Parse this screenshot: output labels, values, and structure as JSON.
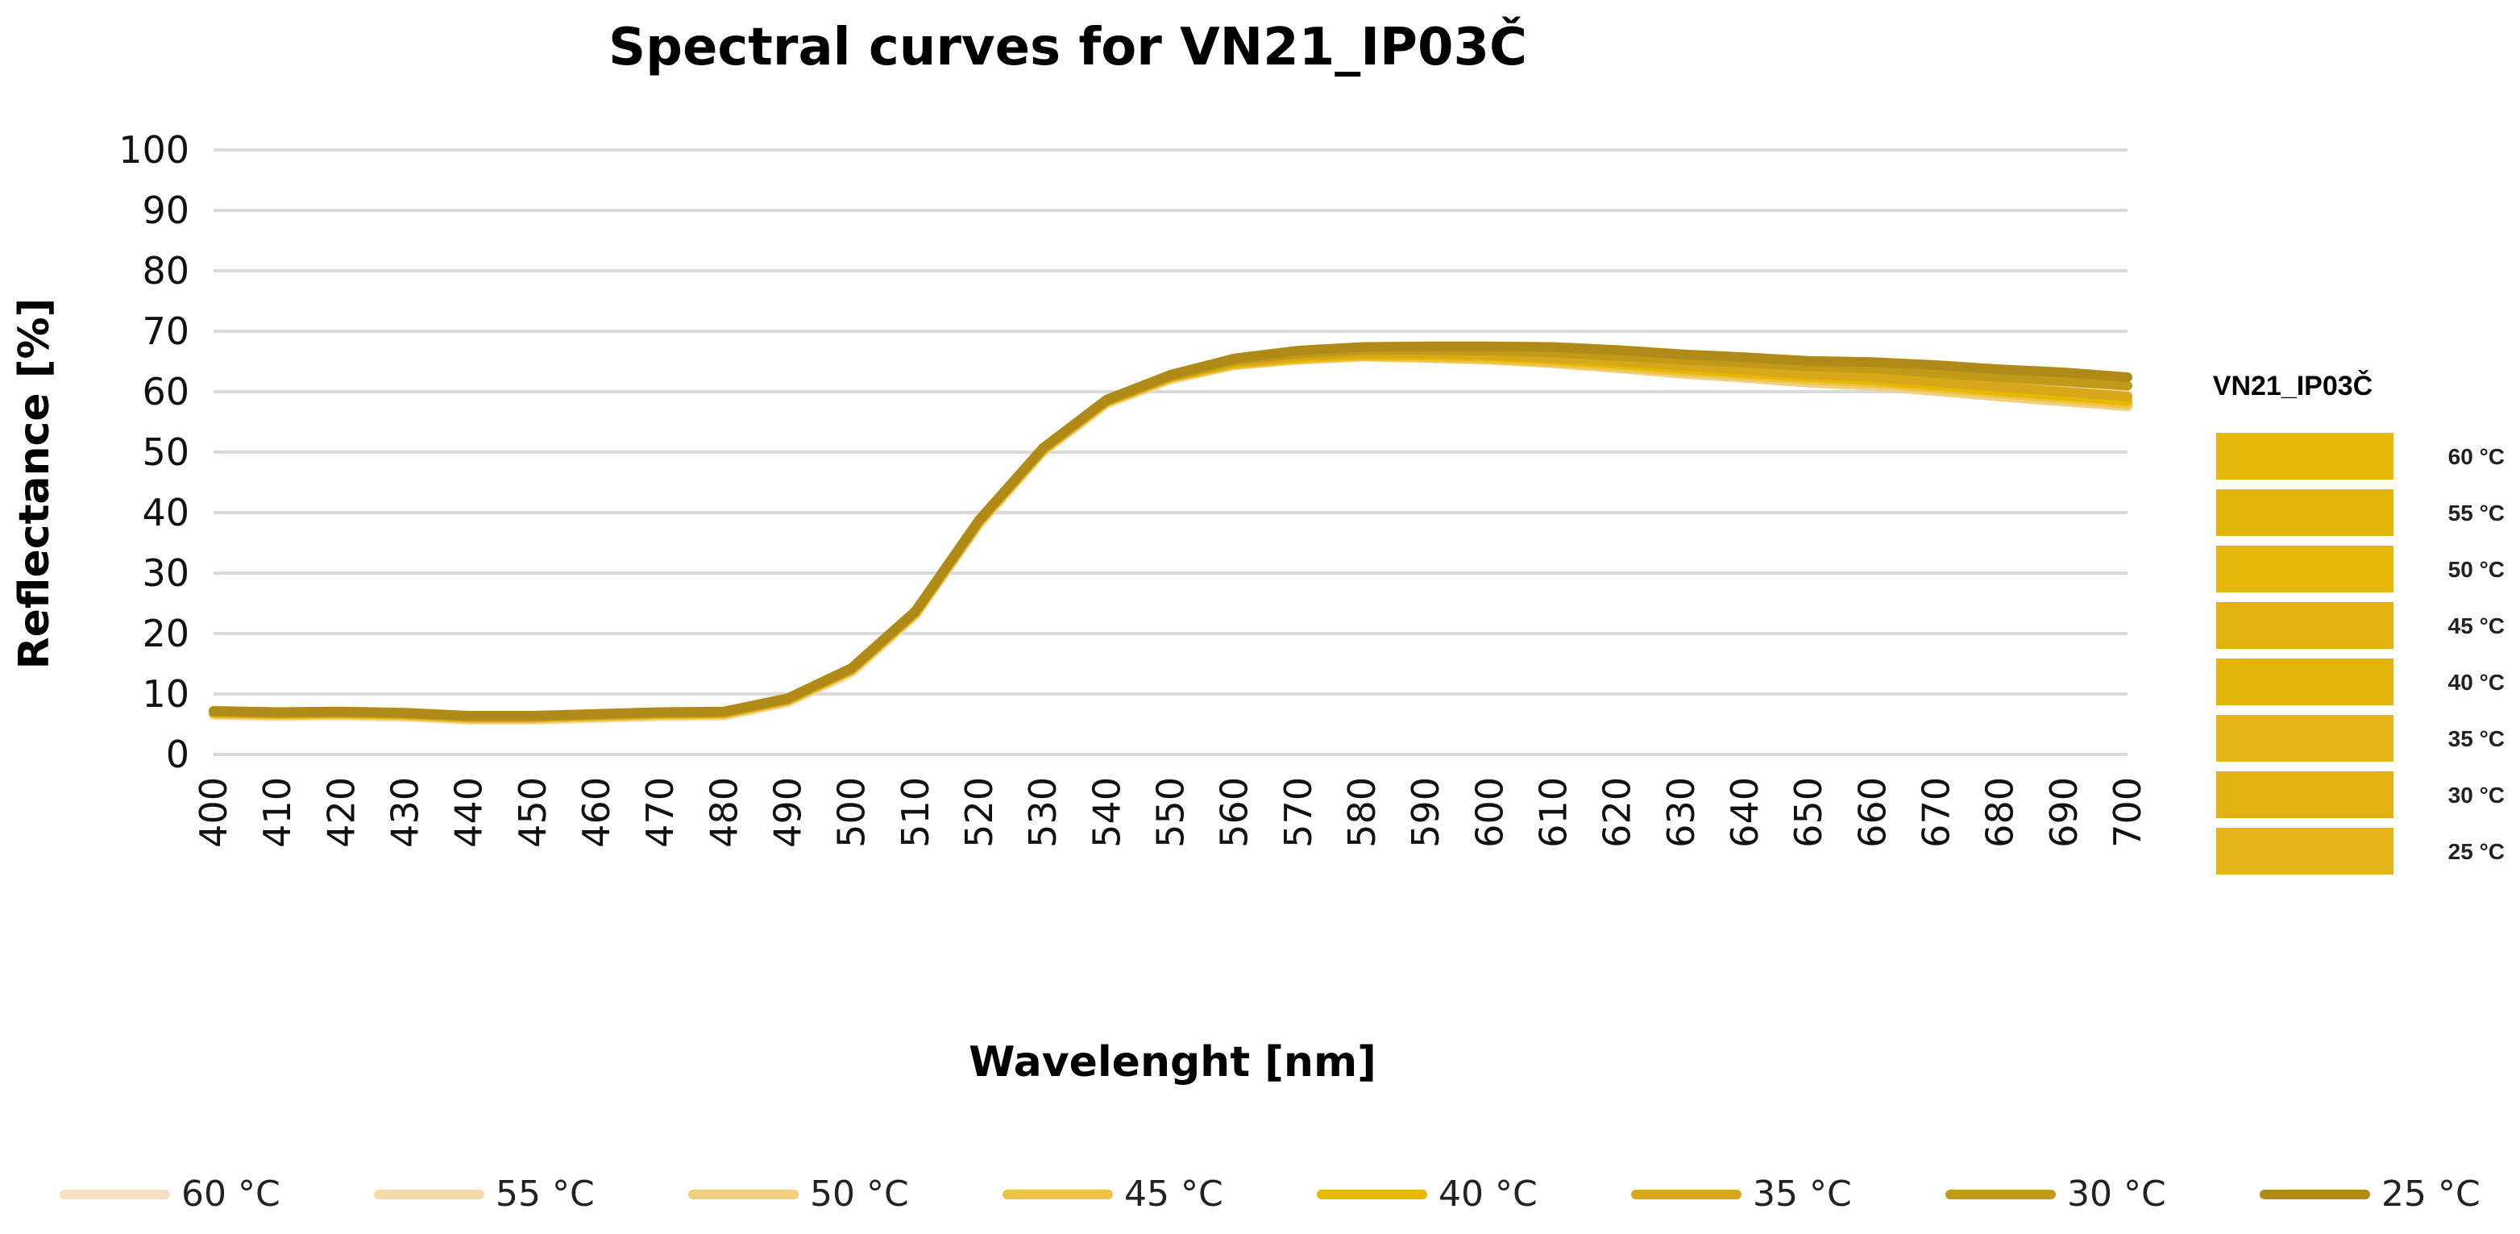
{
  "chart_data": {
    "type": "line",
    "title": "Spectral curves for VN21_IP03Č",
    "xlabel": "Wavelenght [nm]",
    "ylabel": "Reflectance [%]",
    "ylim": [
      0,
      100
    ],
    "yticks": [
      0,
      10,
      20,
      30,
      40,
      50,
      60,
      70,
      80,
      90,
      100
    ],
    "x": [
      400,
      410,
      420,
      430,
      440,
      450,
      460,
      470,
      480,
      490,
      500,
      510,
      520,
      530,
      540,
      550,
      560,
      570,
      580,
      590,
      600,
      610,
      620,
      630,
      640,
      650,
      660,
      670,
      680,
      690,
      700
    ],
    "grid": true,
    "legend_position": "bottom",
    "series": [
      {
        "name": "60 °C",
        "color": "#f6dfc0",
        "values": [
          6.5,
          6.3,
          6.4,
          6.2,
          5.7,
          5.7,
          6.0,
          6.3,
          6.4,
          8.6,
          13.5,
          23,
          38,
          50,
          58,
          62,
          64.4,
          65.4,
          66.0,
          66.0,
          66.0,
          65.8,
          65.3,
          64.8,
          64.3,
          63.7,
          63.3,
          62.3,
          61.4,
          60.5,
          59.5
        ]
      },
      {
        "name": "55 °C",
        "color": "#f5dba8",
        "values": [
          6.6,
          6.4,
          6.5,
          6.3,
          5.8,
          5.8,
          6.1,
          6.4,
          6.5,
          8.7,
          13.7,
          23.1,
          38.2,
          50.1,
          58.1,
          62.1,
          64.5,
          65.4,
          65.9,
          65.8,
          65.6,
          65.2,
          64.6,
          63.9,
          63.3,
          62.6,
          62.1,
          61.1,
          60.2,
          59.3,
          58.3
        ]
      },
      {
        "name": "50 °C",
        "color": "#f1cf7c",
        "values": [
          6.7,
          6.5,
          6.6,
          6.4,
          5.9,
          5.9,
          6.2,
          6.5,
          6.6,
          8.8,
          13.8,
          23.2,
          38.3,
          50.2,
          58.2,
          62.2,
          64.4,
          65.3,
          65.8,
          65.6,
          65.3,
          64.7,
          63.9,
          63.0,
          62.3,
          61.5,
          61.0,
          60.1,
          59.2,
          58.4,
          57.6
        ]
      },
      {
        "name": "45 °C",
        "color": "#edc34a",
        "values": [
          6.8,
          6.6,
          6.7,
          6.5,
          6.0,
          6.0,
          6.3,
          6.6,
          6.7,
          8.9,
          13.9,
          23.3,
          38.4,
          50.3,
          58.3,
          62.3,
          64.5,
          65.4,
          65.9,
          65.7,
          65.4,
          64.9,
          64.2,
          63.4,
          62.7,
          62.0,
          61.5,
          60.6,
          59.7,
          58.9,
          58.0
        ]
      },
      {
        "name": "40 °C",
        "color": "#e6b800",
        "values": [
          6.9,
          6.7,
          6.8,
          6.6,
          6.1,
          6.1,
          6.4,
          6.7,
          6.8,
          9.0,
          14.0,
          23.4,
          38.5,
          50.4,
          58.4,
          62.4,
          64.7,
          65.6,
          66.1,
          66.0,
          65.8,
          65.3,
          64.6,
          63.8,
          63.1,
          62.4,
          61.9,
          61.0,
          60.1,
          59.3,
          58.5
        ]
      },
      {
        "name": "35 °C",
        "color": "#d9a71a",
        "values": [
          7.0,
          6.8,
          6.9,
          6.7,
          6.2,
          6.2,
          6.5,
          6.8,
          6.9,
          9.1,
          14.1,
          23.5,
          38.6,
          50.5,
          58.5,
          62.5,
          64.9,
          65.9,
          66.4,
          66.3,
          66.1,
          65.6,
          65.0,
          64.3,
          63.6,
          62.9,
          62.4,
          61.6,
          60.8,
          60.0,
          59.2
        ]
      },
      {
        "name": "30 °C",
        "color": "#c19a18",
        "values": [
          7.1,
          6.9,
          7.0,
          6.8,
          6.3,
          6.3,
          6.6,
          6.9,
          7.0,
          9.2,
          14.2,
          23.6,
          38.7,
          50.6,
          58.6,
          62.6,
          65.2,
          66.3,
          66.9,
          66.9,
          66.8,
          66.5,
          65.9,
          65.3,
          64.8,
          64.2,
          63.9,
          63.1,
          62.4,
          61.7,
          61.0
        ]
      },
      {
        "name": "25 °C",
        "color": "#b08a16",
        "values": [
          7.2,
          7.0,
          7.1,
          6.9,
          6.4,
          6.4,
          6.7,
          7.0,
          7.1,
          9.3,
          14.3,
          23.7,
          38.8,
          50.7,
          58.7,
          62.8,
          65.5,
          66.8,
          67.4,
          67.5,
          67.5,
          67.4,
          66.9,
          66.2,
          65.7,
          65.1,
          64.9,
          64.4,
          63.7,
          63.2,
          62.4
        ]
      }
    ]
  },
  "side_legend": {
    "title": "VN21_IP03Č",
    "items": [
      {
        "label": "60 °C",
        "color": "#e6b80a"
      },
      {
        "label": "55 °C",
        "color": "#e5b50c"
      },
      {
        "label": "50 °C",
        "color": "#e6b608"
      },
      {
        "label": "45 °C",
        "color": "#e4b30e"
      },
      {
        "label": "40 °C",
        "color": "#e5b40c"
      },
      {
        "label": "35 °C",
        "color": "#e6b416"
      },
      {
        "label": "30 °C",
        "color": "#e4b210"
      },
      {
        "label": "25 °C",
        "color": "#e5b418"
      }
    ]
  }
}
